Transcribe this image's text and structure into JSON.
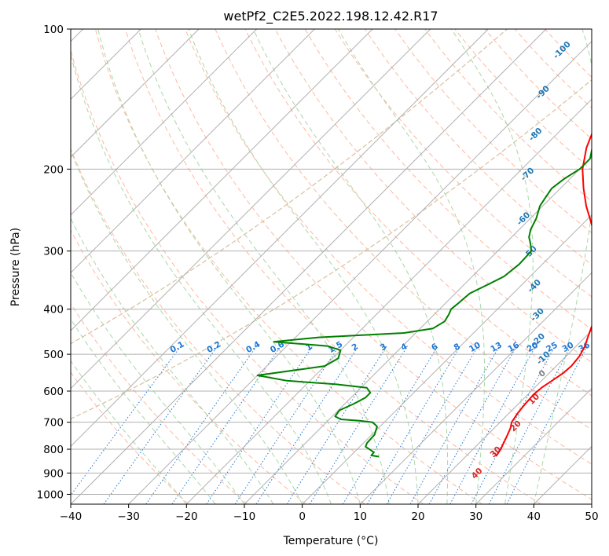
{
  "chart_data": {
    "type": "line",
    "title": "wetPf2_C2E5.2022.198.12.42.R17",
    "xlabel": "Temperature (°C)",
    "ylabel": "Pressure (hPa)",
    "xlim": [
      -40,
      50
    ],
    "ylim": [
      1050,
      100
    ],
    "y_scale": "log",
    "x_ticks": [
      -40,
      -30,
      -20,
      -10,
      0,
      10,
      20,
      30,
      40,
      50
    ],
    "y_ticks": [
      100,
      200,
      300,
      400,
      500,
      600,
      700,
      800,
      900,
      1000
    ],
    "grid": true,
    "legend": "none",
    "series": [
      {
        "color": "#ff0000",
        "x": [
          25.2,
          25.0,
          24.8,
          24.3,
          23.6,
          22.8,
          22.0,
          21.5,
          21.2,
          21.0,
          21.2,
          21.8,
          22.4,
          22.6,
          22.3,
          21.5,
          20.5,
          19.5,
          18.5,
          17.5,
          16.8,
          16.0,
          15.0,
          13.5,
          11.5,
          9.0,
          5.5,
          2.0,
          -2.5,
          -6.0,
          -9.5,
          -12.5,
          -15.0,
          -16.5,
          -17.5,
          -18.0,
          -18.5,
          -18.3,
          -17.0,
          -14.5
        ],
        "y": [
          828,
          815,
          800,
          780,
          750,
          720,
          700,
          670,
          640,
          610,
          590,
          570,
          550,
          530,
          505,
          480,
          460,
          440,
          420,
          405,
          390,
          375,
          360,
          345,
          330,
          315,
          290,
          265,
          240,
          220,
          200,
          180,
          160,
          150,
          140,
          130,
          122,
          115,
          108,
          100
        ]
      },
      {
        "color": "#008000",
        "x": [
          5.0,
          3.5,
          3.4,
          1.0,
          0.6,
          0.5,
          -0.5,
          -2.0,
          -4.5,
          -8.0,
          -9.5,
          -9.8,
          -8.5,
          -7.5,
          -7.5,
          -9.0,
          -15.0,
          -24.0,
          -30.0,
          -20.0,
          -19.0,
          -20.0,
          -23.0,
          -33.0,
          -26.0,
          -12.0,
          -7.8,
          -7.0,
          -7.5,
          -8.0,
          -7.8,
          -7.5,
          -6.0,
          -4.5,
          -4.0,
          -4.2,
          -5.5,
          -7.0,
          -8.0,
          -9.0,
          -10.5,
          -11.0,
          -11.5,
          -11.0,
          -10.0,
          -10.0,
          -11.5,
          -12.0,
          -12.5,
          -11.0,
          -7.5,
          -5.5,
          -4.5,
          -3.0,
          -1.5,
          0.5,
          2.0
        ],
        "y": [
          830,
          825,
          812,
          790,
          775,
          745,
          715,
          700,
          695,
          690,
          680,
          660,
          640,
          620,
          605,
          590,
          580,
          570,
          555,
          530,
          510,
          490,
          480,
          470,
          460,
          450,
          440,
          425,
          410,
          400,
          390,
          370,
          355,
          340,
          320,
          300,
          290,
          280,
          270,
          255,
          240,
          230,
          220,
          210,
          200,
          190,
          180,
          170,
          160,
          150,
          140,
          130,
          120,
          115,
          110,
          105,
          100
        ]
      }
    ],
    "isotherm_step": 10,
    "dry_adiabats_theta_K": [
      250,
      260,
      270,
      280,
      290,
      300,
      310,
      320,
      330,
      340,
      350,
      360,
      370,
      380,
      390,
      400,
      410,
      420,
      430,
      440,
      450
    ],
    "moist_adiabats_start_C": [
      -20,
      -15,
      -10,
      -5,
      0,
      5,
      10,
      15,
      20,
      25,
      30,
      35,
      40
    ],
    "mixing_ratio_lines_gkg": [
      "0.1",
      "0.2",
      "0.4",
      "0.6",
      "1",
      "1.5",
      "2",
      "3",
      "4",
      "6",
      "8",
      "10",
      "13",
      "16",
      "20",
      "25",
      "30",
      "36"
    ],
    "annotations_blue": [
      {
        "text": "-100",
        "x": -33.0,
        "y": 112
      },
      {
        "text": "-90",
        "x": -29.0,
        "y": 138
      },
      {
        "text": "-80",
        "x": -23.0,
        "y": 170
      },
      {
        "text": "-70",
        "x": -17.5,
        "y": 207
      },
      {
        "text": "-60",
        "x": -10.5,
        "y": 258
      },
      {
        "text": "-50",
        "x": -3.5,
        "y": 305
      },
      {
        "text": "-40",
        "x": 3.0,
        "y": 360
      },
      {
        "text": "-30",
        "x": 8.5,
        "y": 415
      },
      {
        "text": "-20",
        "x": 13.0,
        "y": 470
      },
      {
        "text": "-10",
        "x": 17.0,
        "y": 514
      }
    ],
    "annotations_gray": [
      {
        "text": "0",
        "x": 19.5,
        "y": 555
      }
    ],
    "annotations_red": [
      {
        "text": "10",
        "x": 22.5,
        "y": 630
      },
      {
        "text": "20",
        "x": 24.0,
        "y": 720
      },
      {
        "text": "30",
        "x": 25.0,
        "y": 818
      },
      {
        "text": "40",
        "x": 25.5,
        "y": 910
      }
    ],
    "colors": {
      "temperature": "#ff0000",
      "dewpoint": "#008000",
      "grid": "#b0b0b0",
      "dry_adiabat": "#ffb8a0",
      "moist_adiabat": "#a8d8a8",
      "mixing_ratio": "#1f77d4",
      "isotherm_label_blue": "#1f77b4",
      "isotherm_label_red": "#d62728",
      "isotherm_label_gray": "#808080",
      "legacy_curve": "#d8c0a0"
    }
  }
}
